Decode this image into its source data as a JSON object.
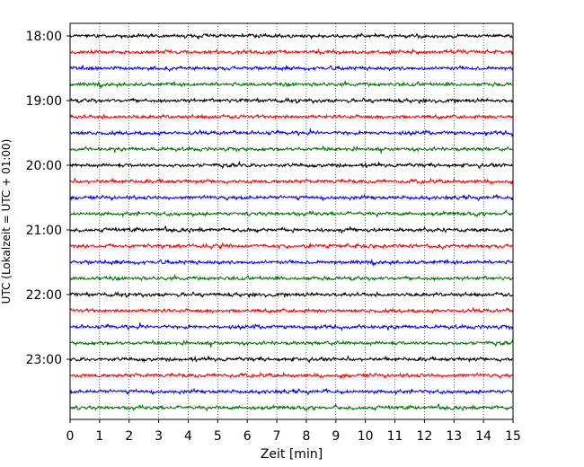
{
  "chart_data": {
    "type": "line",
    "title": "",
    "xlabel": "Zeit  [min]",
    "ylabel": "UTC (Lokalzeit = UTC + 01:00)",
    "xlim": [
      0,
      15
    ],
    "x_ticks": [
      "0",
      "1",
      "2",
      "3",
      "4",
      "5",
      "6",
      "7",
      "8",
      "9",
      "10",
      "11",
      "12",
      "13",
      "14",
      "15"
    ],
    "y_ticks": [
      "18:00",
      "19:00",
      "20:00",
      "21:00",
      "22:00",
      "23:00"
    ],
    "grid": "vertical dotted",
    "colors": [
      "#000000",
      "#ff0000",
      "#0000ff",
      "#007700"
    ],
    "traces": [
      "18:00",
      "18:15",
      "18:30",
      "18:45",
      "19:00",
      "19:15",
      "19:30",
      "19:45",
      "20:00",
      "20:15",
      "20:30",
      "20:45",
      "21:00",
      "21:15",
      "21:30",
      "21:45",
      "22:00",
      "22:15",
      "22:30",
      "22:45",
      "23:00",
      "23:15",
      "23:30",
      "23:45"
    ],
    "trace_duration_min": 15,
    "noise_amplitude": 0.08
  }
}
